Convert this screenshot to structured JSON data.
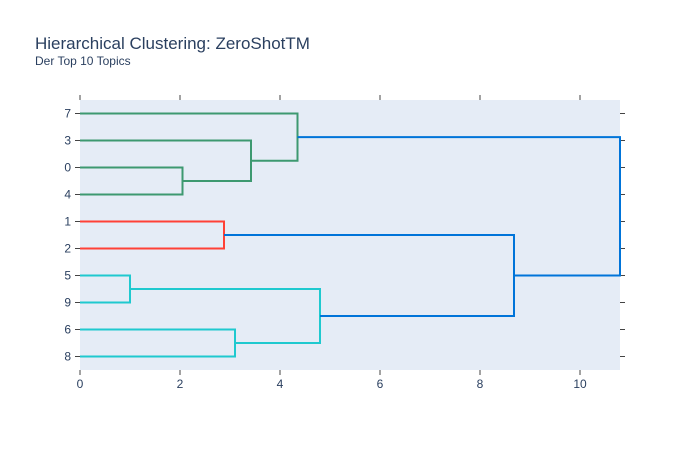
{
  "chart_data": {
    "type": "dendrogram",
    "title": "Hierarchical Clustering: ZeroShotTM",
    "subtitle": "Der Top 10 Topics",
    "xlim": [
      0,
      10.8
    ],
    "xticks": [
      0,
      2,
      4,
      6,
      8,
      10
    ],
    "leaves": [
      "7",
      "3",
      "0",
      "4",
      "1",
      "2",
      "5",
      "9",
      "6",
      "8"
    ],
    "colors": {
      "cluster_green": "#3d9970",
      "cluster_red": "#ff4136",
      "cluster_cyan": "#1fc9cf",
      "link_blue": "#0074d9",
      "plot_bg": "#e5ecf6"
    },
    "links": [
      {
        "left": "L:0",
        "right": "L:4",
        "height": 2.05,
        "color": "cluster_green"
      },
      {
        "left": "L:3",
        "right": "N:0",
        "height": 3.42,
        "color": "cluster_green"
      },
      {
        "left": "L:7",
        "right": "N:1",
        "height": 4.35,
        "color": "cluster_green"
      },
      {
        "left": "L:1",
        "right": "L:2",
        "height": 2.88,
        "color": "cluster_red"
      },
      {
        "left": "L:5",
        "right": "L:9",
        "height": 1.0,
        "color": "cluster_cyan"
      },
      {
        "left": "L:6",
        "right": "L:8",
        "height": 3.1,
        "color": "cluster_cyan"
      },
      {
        "left": "N:4",
        "right": "N:5",
        "height": 4.8,
        "color": "cluster_cyan"
      },
      {
        "left": "N:3",
        "right": "N:6",
        "height": 8.68,
        "color": "link_blue"
      },
      {
        "left": "N:2",
        "right": "N:7",
        "height": 10.8,
        "color": "link_blue"
      }
    ]
  }
}
